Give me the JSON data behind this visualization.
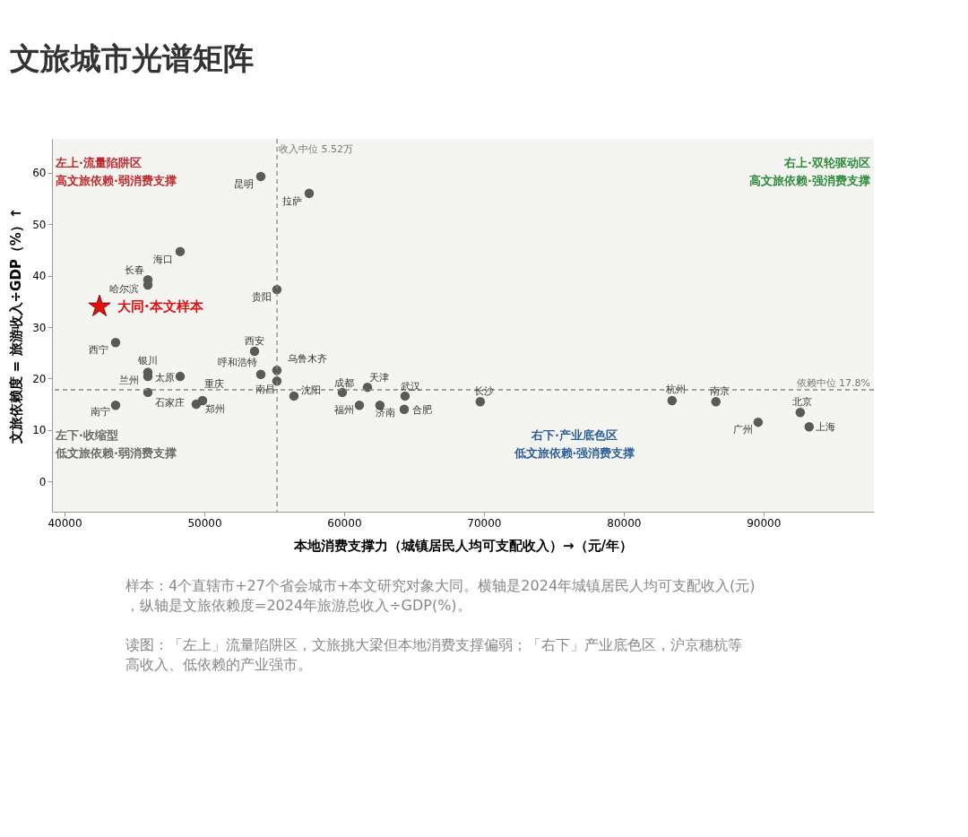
{
  "chart_data": {
    "type": "scatter",
    "title": "文旅城市光谱矩阵",
    "xlabel": "本地消费支撑力（城镇居民人均可支配收入）→（元/年）",
    "ylabel": "文旅依赖度 = 旅游收入÷GDP（%）↑",
    "xlim": [
      39100,
      97900
    ],
    "xticks": [
      40000,
      50000,
      60000,
      70000,
      80000,
      90000
    ],
    "ylim": [
      -5.9,
      66.6
    ],
    "yticks": [
      0,
      10,
      20,
      30,
      40,
      50,
      60
    ],
    "grid": false,
    "legend": false,
    "series": [
      {
        "type": "scatter",
        "marker": "circle",
        "color": "#5a5a5a",
        "x": [
          54040,
          57500,
          48270,
          45960,
          45960,
          55190,
          43650,
          53590,
          54040,
          55190,
          55190,
          45960,
          45960,
          48270,
          45960,
          49870,
          49420,
          43650,
          56410,
          59870,
          61670,
          61090,
          62560,
          64360,
          64300,
          69740,
          83460,
          86600,
          92630,
          89620,
          93270
        ],
        "values": [
          59.3,
          56.0,
          44.7,
          39.2,
          38.2,
          37.3,
          27.0,
          25.3,
          20.8,
          21.6,
          19.5,
          21.2,
          20.4,
          20.4,
          17.3,
          15.7,
          15.0,
          14.8,
          16.6,
          17.3,
          18.3,
          14.8,
          14.8,
          16.6,
          14.0,
          15.5,
          15.7,
          15.5,
          13.4,
          11.5,
          10.6
        ]
      },
      {
        "type": "scatter",
        "marker": "star",
        "name": "大同·本文样本",
        "color": "#e01010",
        "x": [
          42500
        ],
        "values": [
          34.0
        ]
      }
    ],
    "ref_lines": [
      {
        "axis": "x",
        "value": 55200,
        "label": "收入中位 5.52万",
        "color": "#888888",
        "line_style": "dashed"
      },
      {
        "axis": "y",
        "value": 17.8,
        "label": "依赖中位 17.8%",
        "color": "#888888",
        "line_style": "dashed"
      }
    ],
    "annotations": [
      {
        "text": "昆明",
        "x": 54040,
        "y": 59.3
      },
      {
        "text": "拉萨",
        "x": 57500,
        "y": 56.0
      },
      {
        "text": "海口",
        "x": 48270,
        "y": 44.7
      },
      {
        "text": "长春",
        "x": 45960,
        "y": 39.2
      },
      {
        "text": "哈尔滨",
        "x": 45960,
        "y": 38.2
      },
      {
        "text": "贵阳",
        "x": 55190,
        "y": 37.3
      },
      {
        "text": "西宁",
        "x": 43650,
        "y": 27.0
      },
      {
        "text": "西安",
        "x": 53590,
        "y": 25.3
      },
      {
        "text": "呼和浩特",
        "x": 54040,
        "y": 20.8
      },
      {
        "text": "乌鲁木齐",
        "x": 55190,
        "y": 21.6
      },
      {
        "text": "南昌",
        "x": 55190,
        "y": 19.5
      },
      {
        "text": "银川",
        "x": 45960,
        "y": 21.2
      },
      {
        "text": "兰州",
        "x": 45960,
        "y": 20.4
      },
      {
        "text": "太原",
        "x": 48270,
        "y": 20.4
      },
      {
        "text": "石家庄",
        "x": 45960,
        "y": 17.3
      },
      {
        "text": "重庆",
        "x": 49870,
        "y": 15.7
      },
      {
        "text": "郑州",
        "x": 49420,
        "y": 15.0
      },
      {
        "text": "南宁",
        "x": 43650,
        "y": 14.8
      },
      {
        "text": "沈阳",
        "x": 56410,
        "y": 16.6
      },
      {
        "text": "成都",
        "x": 59870,
        "y": 17.3
      },
      {
        "text": "天津",
        "x": 61670,
        "y": 18.3
      },
      {
        "text": "福州",
        "x": 61090,
        "y": 14.8
      },
      {
        "text": "济南",
        "x": 62560,
        "y": 14.8
      },
      {
        "text": "武汉",
        "x": 64360,
        "y": 16.6
      },
      {
        "text": "合肥",
        "x": 64300,
        "y": 14.0
      },
      {
        "text": "长沙",
        "x": 69740,
        "y": 15.5
      },
      {
        "text": "杭州",
        "x": 83460,
        "y": 15.7
      },
      {
        "text": "南京",
        "x": 86600,
        "y": 15.5
      },
      {
        "text": "北京",
        "x": 92630,
        "y": 13.4
      },
      {
        "text": "广州",
        "x": 89620,
        "y": 11.5
      },
      {
        "text": "上海",
        "x": 93270,
        "y": 10.6
      },
      "左上·流量陷阱区",
      "高文旅依赖·弱消费支撑",
      "右上·双轮驱动区",
      "高文旅依赖·强消费支撑",
      "左下·收缩型",
      "低文旅依赖·弱消费支撑",
      "右下·产业底色区",
      "低文旅依赖·强消费支撑",
      "样本：4个直辖市+27个省会城市+本文研究对象大同。横轴是2024年城镇居民人均可支配收入(元)，纵轴是文旅依赖度=2024年旅游总收入÷GDP(%)。",
      "读图：「左上」流量陷阱区，文旅挑大梁但本地消费支撑偏弱；「右下」产业底色区，沪京穗杭等高收入、低依赖的产业强市。"
    ]
  }
}
